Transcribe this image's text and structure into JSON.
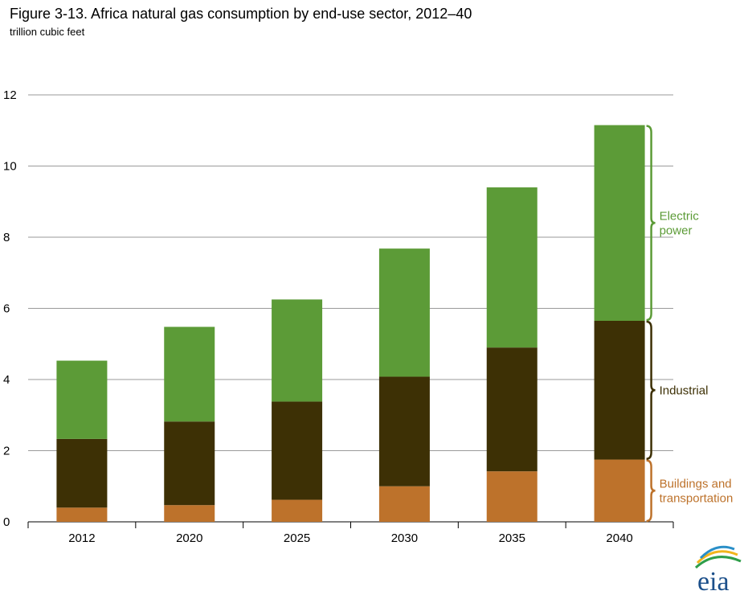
{
  "chart_data": {
    "type": "bar",
    "stacked": true,
    "title": "Figure 3-13. Africa natural gas consumption by end-use sector, 2012–40",
    "subtitle": "trillion cubic feet",
    "categories": [
      "2012",
      "2020",
      "2025",
      "2030",
      "2035",
      "2040"
    ],
    "series": [
      {
        "name": "Buildings and transportation",
        "color": "#bd722b",
        "values": [
          0.4,
          0.47,
          0.62,
          1.0,
          1.42,
          1.75
        ]
      },
      {
        "name": "Industrial",
        "color": "#3d3005",
        "values": [
          1.93,
          2.35,
          2.76,
          3.08,
          3.48,
          3.9
        ]
      },
      {
        "name": "Electric power",
        "color": "#5c9b37",
        "values": [
          2.2,
          2.66,
          2.87,
          3.6,
          4.5,
          5.5
        ]
      }
    ],
    "ylim": [
      0,
      12
    ],
    "yticks": [
      0,
      2,
      4,
      6,
      8,
      10,
      12
    ],
    "grid": true,
    "legend_placement": "right, brace labels beside final bar"
  },
  "logo": {
    "text": "eia",
    "name": "eia-logo"
  }
}
